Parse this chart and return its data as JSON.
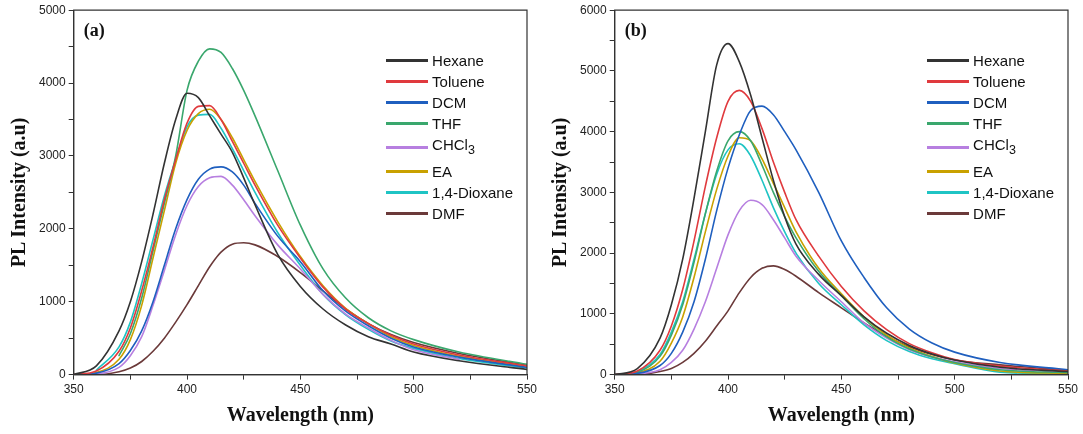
{
  "chart_data": [
    {
      "type": "line",
      "annotations": [
        "(a)"
      ],
      "xlabel": "Wavelength (nm)",
      "ylabel": "PL Intensity (a.u)",
      "x": [
        350,
        360,
        370,
        375,
        380,
        385,
        390,
        395,
        400,
        405,
        410,
        415,
        420,
        425,
        430,
        440,
        450,
        460,
        470,
        480,
        490,
        500,
        520,
        550
      ],
      "xlim": [
        350,
        550
      ],
      "xticks": [
        350,
        {
          "value": 375,
          "label": null
        },
        400,
        {
          "value": 425,
          "label": null
        },
        450,
        {
          "value": 475,
          "label": null
        },
        500,
        {
          "value": 525,
          "label": null
        },
        550
      ],
      "ylim": [
        0,
        5000
      ],
      "yticks": [
        0,
        {
          "value": 500,
          "label": null
        },
        1000,
        {
          "value": 1500,
          "label": null
        },
        2000,
        {
          "value": 2500,
          "label": null
        },
        3000,
        {
          "value": 3500,
          "label": null
        },
        4000,
        {
          "value": 4500,
          "label": null
        },
        5000
      ],
      "legend": "top right",
      "marker": "none",
      "line_style": "solid",
      "grid": false,
      "series": [
        {
          "name": "Hexane",
          "color": "#333333",
          "values": [
            0,
            120,
            600,
            1000,
            1550,
            2200,
            2900,
            3500,
            3860,
            3800,
            3550,
            3300,
            3050,
            2700,
            2330,
            1650,
            1210,
            900,
            680,
            520,
            420,
            310,
            190,
            70
          ]
        },
        {
          "name": "Toluene",
          "color": "#e03a3e",
          "values": [
            0,
            50,
            320,
            640,
            1150,
            1750,
            2400,
            2950,
            3450,
            3680,
            3690,
            3500,
            3200,
            2900,
            2600,
            2050,
            1600,
            1200,
            900,
            700,
            540,
            420,
            270,
            120
          ]
        },
        {
          "name": "DCM",
          "color": "#1f5fbf",
          "values": [
            0,
            20,
            150,
            330,
            600,
            1000,
            1500,
            2000,
            2400,
            2680,
            2820,
            2850,
            2780,
            2600,
            2350,
            1900,
            1550,
            1150,
            870,
            670,
            500,
            380,
            240,
            100
          ]
        },
        {
          "name": "THF",
          "color": "#3aa76d",
          "values": [
            null,
            null,
            260,
            560,
            1050,
            1700,
            2350,
            3000,
            3900,
            4300,
            4470,
            4420,
            4200,
            3900,
            3550,
            2800,
            2050,
            1450,
            1050,
            780,
            600,
            480,
            310,
            140
          ]
        },
        {
          "name": "CHCl$_{3}$",
          "color": "#b77fe0",
          "values": [
            0,
            10,
            100,
            260,
            520,
            950,
            1430,
            1920,
            2320,
            2580,
            2700,
            2720,
            2600,
            2400,
            2180,
            1780,
            1450,
            1100,
            830,
            640,
            470,
            340,
            210,
            null
          ]
        },
        {
          "name": "EA",
          "color": "#c9a100",
          "values": [
            0,
            30,
            210,
            480,
            950,
            1600,
            2250,
            2900,
            3350,
            3580,
            3640,
            3500,
            3250,
            2950,
            2650,
            2100,
            1620,
            1220,
            910,
            700,
            520,
            400,
            250,
            110
          ]
        },
        {
          "name": "1,4-Dioxane",
          "color": "#1fc4c4",
          "values": [
            null,
            60,
            380,
            720,
            1250,
            1850,
            2450,
            2950,
            3400,
            3560,
            3570,
            3380,
            3100,
            2800,
            2500,
            1950,
            1500,
            1100,
            820,
            620,
            460,
            360,
            220,
            90
          ]
        },
        {
          "name": "DMF",
          "color": "#6b3a3a",
          "values": [
            0,
            0,
            40,
            90,
            180,
            320,
            500,
            720,
            960,
            1220,
            1480,
            1680,
            1790,
            1810,
            1780,
            1620,
            1400,
            1150,
            900,
            700,
            550,
            440,
            290,
            130
          ]
        }
      ]
    },
    {
      "type": "line",
      "annotations": [
        "(b)"
      ],
      "xlabel": "Wavelength (nm)",
      "ylabel": "PL Intensity (a.u)",
      "x": [
        350,
        360,
        370,
        375,
        380,
        385,
        390,
        395,
        400,
        405,
        410,
        415,
        420,
        425,
        430,
        440,
        450,
        460,
        470,
        480,
        490,
        500,
        520,
        550
      ],
      "xlim": [
        350,
        550
      ],
      "xticks": [
        350,
        {
          "value": 375,
          "label": null
        },
        400,
        {
          "value": 425,
          "label": null
        },
        450,
        {
          "value": 475,
          "label": null
        },
        500,
        {
          "value": 525,
          "label": null
        },
        550
      ],
      "ylim": [
        0,
        6000
      ],
      "yticks": [
        0,
        {
          "value": 500,
          "label": null
        },
        1000,
        {
          "value": 1500,
          "label": null
        },
        2000,
        {
          "value": 2500,
          "label": null
        },
        3000,
        {
          "value": 3500,
          "label": null
        },
        4000,
        {
          "value": 4500,
          "label": null
        },
        5000,
        {
          "value": 5500,
          "label": null
        },
        6000
      ],
      "legend": "top right",
      "marker": "none",
      "line_style": "solid",
      "grid": false,
      "series": [
        {
          "name": "Hexane",
          "color": "#333333",
          "values": [
            0,
            100,
            600,
            1150,
            1900,
            2900,
            4000,
            5100,
            5450,
            5150,
            4600,
            3900,
            3200,
            2600,
            2150,
            1650,
            1300,
            950,
            680,
            480,
            340,
            240,
            120,
            50
          ]
        },
        {
          "name": "Toluene",
          "color": "#e03a3e",
          "values": [
            0,
            60,
            400,
            800,
            1400,
            2200,
            3100,
            3900,
            4500,
            4680,
            4500,
            4050,
            3500,
            3000,
            2550,
            1950,
            1450,
            1050,
            740,
            510,
            360,
            250,
            140,
            60
          ]
        },
        {
          "name": "DCM",
          "color": "#1f5fbf",
          "values": [
            0,
            20,
            150,
            350,
            700,
            1200,
            1900,
            2700,
            3400,
            3950,
            4350,
            4420,
            4280,
            4000,
            3700,
            3000,
            2200,
            1600,
            1100,
            750,
            520,
            370,
            200,
            80
          ]
        },
        {
          "name": "THF",
          "color": "#3aa76d",
          "values": [
            0,
            40,
            300,
            650,
            1150,
            1850,
            2650,
            3350,
            3850,
            4000,
            3850,
            3450,
            3000,
            2600,
            2250,
            1700,
            1300,
            920,
            620,
            420,
            290,
            200,
            80,
            30
          ]
        },
        {
          "name": "CHCl$_{3}$",
          "color": "#b77fe0",
          "values": [
            0,
            10,
            80,
            200,
            400,
            750,
            1200,
            1750,
            2300,
            2700,
            2870,
            2800,
            2550,
            2250,
            1950,
            1550,
            1200,
            850,
            600,
            410,
            290,
            210,
            100,
            40
          ]
        },
        {
          "name": "EA",
          "color": "#c9a100",
          "values": [
            0,
            30,
            220,
            520,
            950,
            1600,
            2350,
            3050,
            3600,
            3900,
            3850,
            3550,
            3150,
            2750,
            2350,
            1750,
            1330,
            950,
            650,
            440,
            300,
            190,
            60,
            20
          ]
        },
        {
          "name": "1,4-Dioxane",
          "color": "#1fc4c4",
          "values": [
            0,
            50,
            330,
            700,
            1200,
            1900,
            2650,
            3300,
            3700,
            3800,
            3600,
            3200,
            2750,
            2350,
            2000,
            1500,
            1150,
            820,
            560,
            380,
            260,
            180,
            40,
            10
          ]
        },
        {
          "name": "DMF",
          "color": "#6b3a3a",
          "values": [
            0,
            0,
            50,
            100,
            200,
            350,
            550,
            800,
            1050,
            1350,
            1600,
            1750,
            1790,
            1730,
            1620,
            1350,
            1100,
            850,
            630,
            460,
            330,
            240,
            160,
            70
          ]
        }
      ]
    }
  ]
}
